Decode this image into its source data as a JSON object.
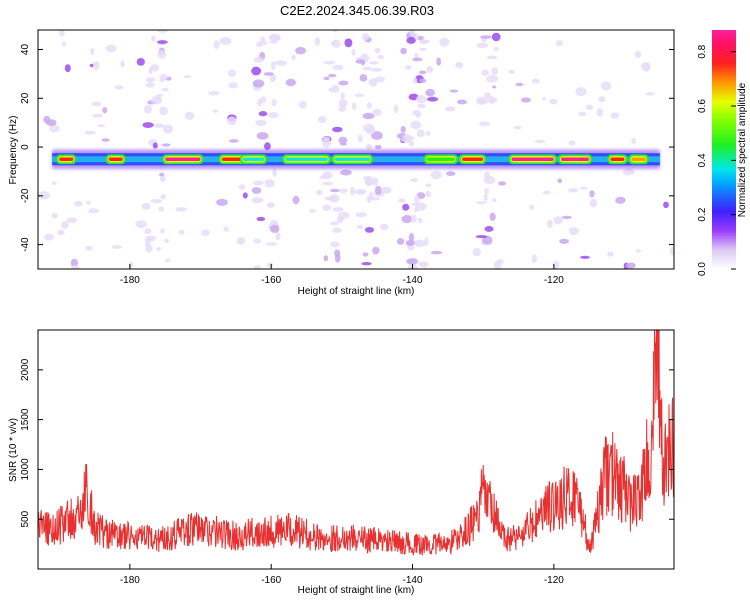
{
  "figure_title": "C2E2.2024.345.06.39.R03",
  "chart_data": [
    {
      "type": "heatmap",
      "title": "C2E2.2024.345.06.39.R03",
      "xlabel": "Height of straight line (km)",
      "ylabel": "Frequency (Hz)",
      "xlim": [
        -193,
        -103
      ],
      "ylim": [
        -50,
        48
      ],
      "x_ticks": [
        -180,
        -160,
        -140,
        -120
      ],
      "y_ticks": [
        -40,
        -20,
        0,
        20,
        40
      ],
      "colorbar": {
        "label": "Normalized spectral amplitude",
        "range": [
          0,
          0.88
        ],
        "ticks": [
          0.0,
          0.2,
          0.4,
          0.6,
          0.8
        ]
      },
      "main_band": {
        "center_hz": -5,
        "segments": [
          {
            "x": [
              -190,
              -188
            ],
            "amplitude": 0.8
          },
          {
            "x": [
              -183,
              -181
            ],
            "amplitude": 0.85
          },
          {
            "x": [
              -175,
              -170
            ],
            "amplitude": 0.88
          },
          {
            "x": [
              -167,
              -164
            ],
            "amplitude": 0.8
          },
          {
            "x": [
              -164,
              -161
            ],
            "amplitude": 0.45
          },
          {
            "x": [
              -158,
              -152
            ],
            "amplitude": 0.4
          },
          {
            "x": [
              -151,
              -146
            ],
            "amplitude": 0.45
          },
          {
            "x": [
              -138,
              -134
            ],
            "amplitude": 0.5
          },
          {
            "x": [
              -133,
              -130
            ],
            "amplitude": 0.85
          },
          {
            "x": [
              -126,
              -120
            ],
            "amplitude": 0.88
          },
          {
            "x": [
              -119,
              -115
            ],
            "amplitude": 0.88
          },
          {
            "x": [
              -112,
              -110
            ],
            "amplitude": 0.8
          },
          {
            "x": [
              -109,
              -107
            ],
            "amplitude": 0.7
          }
        ]
      }
    },
    {
      "type": "line",
      "xlabel": "Height of straight line (km)",
      "ylabel": "SNR (10 * v/v)",
      "xlim": [
        -193,
        -103
      ],
      "ylim": [
        0,
        2400
      ],
      "x_ticks": [
        -180,
        -160,
        -140,
        -120
      ],
      "y_ticks": [
        500,
        1000,
        1500,
        2000
      ],
      "color": "#e83030",
      "series": [
        {
          "x": [
            -193,
            -191,
            -189,
            -187,
            -186,
            -185,
            -183,
            -181,
            -179,
            -177,
            -175,
            -173,
            -171,
            -169,
            -167,
            -165,
            -163,
            -161,
            -159,
            -157,
            -155,
            -153,
            -151,
            -149,
            -147,
            -145,
            -143,
            -141,
            -139,
            -137,
            -135,
            -133,
            -131,
            -130,
            -129,
            -127,
            -125,
            -123,
            -121,
            -119,
            -117,
            -116,
            -115,
            -114,
            -113,
            -112,
            -111,
            -110,
            -109,
            -108,
            -107,
            -106,
            -105.5,
            -105,
            -104.5,
            -104,
            -103
          ],
          "y": [
            450,
            400,
            480,
            520,
            820,
            420,
            350,
            330,
            320,
            300,
            310,
            380,
            400,
            390,
            360,
            330,
            350,
            400,
            380,
            390,
            350,
            300,
            310,
            320,
            300,
            290,
            270,
            260,
            240,
            250,
            260,
            330,
            500,
            760,
            620,
            300,
            330,
            450,
            600,
            700,
            750,
            550,
            200,
            450,
            900,
            1000,
            850,
            800,
            650,
            700,
            1000,
            1300,
            2300,
            1700,
            900,
            1150,
            1200
          ]
        }
      ]
    }
  ]
}
